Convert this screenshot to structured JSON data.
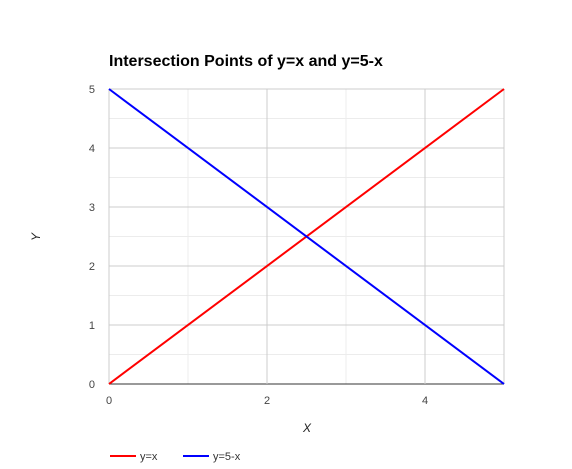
{
  "chart_data": {
    "type": "line",
    "title": "Intersection Points of y=x and y=5-x",
    "xlabel": "X",
    "ylabel": "Y",
    "xlim": [
      0,
      5
    ],
    "ylim": [
      0,
      5
    ],
    "x_ticks": [
      0,
      2,
      4
    ],
    "y_ticks": [
      0,
      1,
      2,
      3,
      4,
      5
    ],
    "x_tick_labels": [
      "0",
      "2",
      "4"
    ],
    "y_tick_labels": [
      "0",
      "1",
      "2",
      "3",
      "4",
      "5"
    ],
    "grid": true,
    "legend_position": "bottom-left",
    "series": [
      {
        "name": "y=x",
        "color": "#ff0000",
        "x": [
          0,
          5
        ],
        "y": [
          0,
          5
        ]
      },
      {
        "name": "y=5-x",
        "color": "#0000ff",
        "x": [
          0,
          5
        ],
        "y": [
          5,
          0
        ]
      }
    ]
  }
}
